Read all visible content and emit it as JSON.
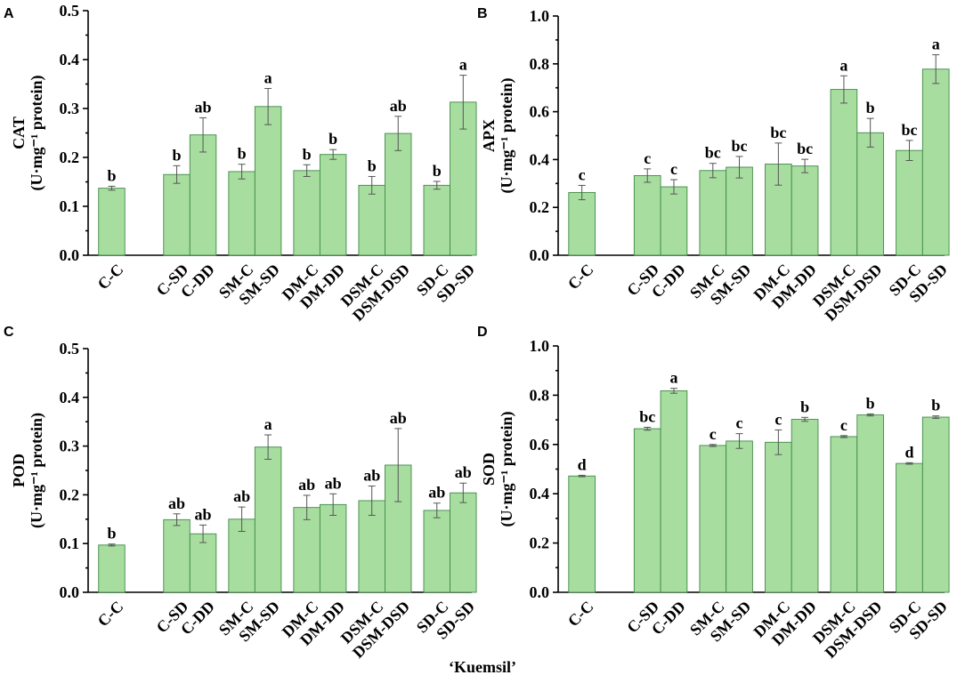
{
  "figure": {
    "xlabel": "‘Kuemsil’",
    "colors": {
      "bar_fill": "#a8dda0",
      "bar_stroke": "#3f8a46",
      "axis": "#000000",
      "error": "#555555"
    }
  },
  "chart_data": [
    {
      "panel": "A",
      "type": "bar",
      "ylabel": "CAT",
      "yunit": "(U·mg⁻¹ protein)",
      "ylim": [
        0,
        0.5
      ],
      "yticks": [
        "0.0",
        "0.1",
        "0.2",
        "0.3",
        "0.4",
        "0.5"
      ],
      "categories": [
        "C-C",
        "C-SD",
        "C-DD",
        "SM-C",
        "SM-SD",
        "DM-C",
        "DM-DD",
        "DSM-C",
        "DSM-DSD",
        "SD-C",
        "SD-SD"
      ],
      "values": [
        0.137,
        0.165,
        0.246,
        0.171,
        0.304,
        0.173,
        0.206,
        0.143,
        0.249,
        0.143,
        0.313
      ],
      "errors": [
        0.004,
        0.018,
        0.035,
        0.015,
        0.037,
        0.012,
        0.01,
        0.018,
        0.035,
        0.008,
        0.055
      ],
      "letters": [
        "b",
        "b",
        "ab",
        "b",
        "a",
        "b",
        "b",
        "b",
        "ab",
        "b",
        "a"
      ]
    },
    {
      "panel": "B",
      "type": "bar",
      "ylabel": "APX",
      "yunit": "(U·mg⁻¹ protein)",
      "ylim": [
        0,
        1.0
      ],
      "yticks": [
        "0.0",
        "0.2",
        "0.4",
        "0.6",
        "0.8",
        "1.0"
      ],
      "categories": [
        "C-C",
        "C-SD",
        "C-DD",
        "SM-C",
        "SM-SD",
        "DM-C",
        "DM-DD",
        "DSM-C",
        "DSM-DSD",
        "SD-C",
        "SD-SD"
      ],
      "values": [
        0.262,
        0.333,
        0.286,
        0.354,
        0.368,
        0.381,
        0.373,
        0.693,
        0.512,
        0.438,
        0.778
      ],
      "errors": [
        0.03,
        0.028,
        0.03,
        0.03,
        0.045,
        0.088,
        0.028,
        0.057,
        0.06,
        0.042,
        0.06
      ],
      "letters": [
        "c",
        "c",
        "c",
        "bc",
        "bc",
        "bc",
        "bc",
        "a",
        "b",
        "bc",
        "a"
      ]
    },
    {
      "panel": "C",
      "type": "bar",
      "ylabel": "POD",
      "yunit": "(U·mg⁻¹ protein)",
      "ylim": [
        0,
        0.5
      ],
      "yticks": [
        "0.0",
        "0.1",
        "0.2",
        "0.3",
        "0.4",
        "0.5"
      ],
      "categories": [
        "C-C",
        "C-SD",
        "C-DD",
        "SM-C",
        "SM-SD",
        "DM-C",
        "DM-DD",
        "DSM-C",
        "DSM-DSD",
        "SD-C",
        "SD-SD"
      ],
      "values": [
        0.097,
        0.149,
        0.12,
        0.15,
        0.298,
        0.174,
        0.18,
        0.188,
        0.261,
        0.168,
        0.204
      ],
      "errors": [
        0.002,
        0.012,
        0.018,
        0.025,
        0.025,
        0.025,
        0.022,
        0.03,
        0.075,
        0.015,
        0.02
      ],
      "letters": [
        "b",
        "ab",
        "ab",
        "ab",
        "a",
        "ab",
        "ab",
        "ab",
        "ab",
        "ab",
        "ab"
      ]
    },
    {
      "panel": "D",
      "type": "bar",
      "ylabel": "SOD",
      "yunit": "(U·mg⁻¹ protein)",
      "ylim": [
        0,
        1.0
      ],
      "yticks": [
        "0.0",
        "0.2",
        "0.4",
        "0.6",
        "0.8",
        "1.0"
      ],
      "categories": [
        "C-C",
        "C-SD",
        "C-DD",
        "SM-C",
        "SM-SD",
        "DM-C",
        "DM-DD",
        "DSM-C",
        "DSM-DSD",
        "SD-C",
        "SD-SD"
      ],
      "values": [
        0.472,
        0.664,
        0.818,
        0.596,
        0.614,
        0.609,
        0.702,
        0.632,
        0.72,
        0.523,
        0.711
      ],
      "errors": [
        0.003,
        0.006,
        0.01,
        0.004,
        0.03,
        0.05,
        0.008,
        0.004,
        0.004,
        0.003,
        0.005
      ],
      "letters": [
        "d",
        "bc",
        "a",
        "c",
        "c",
        "c",
        "b",
        "c",
        "b",
        "d",
        "b"
      ]
    }
  ]
}
